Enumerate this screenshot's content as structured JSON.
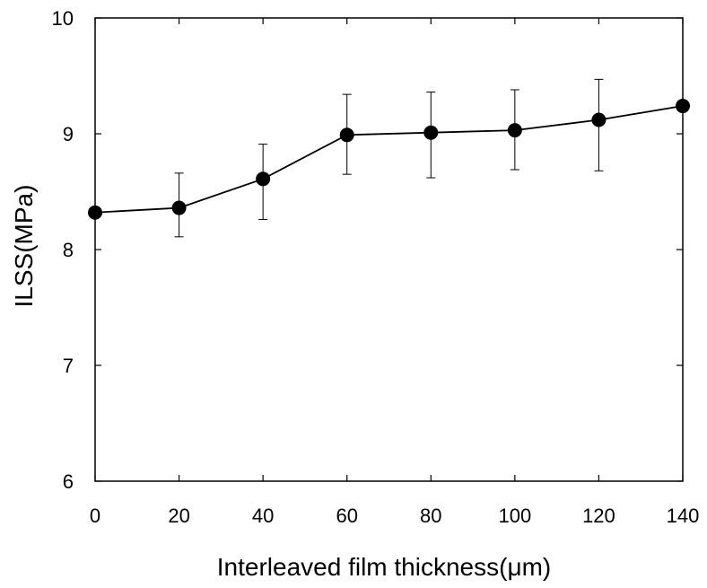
{
  "chart_data": {
    "type": "line",
    "title": "",
    "xlabel": "Interleaved  film thickness(μm)",
    "ylabel": "ILSS(MPa)",
    "xlim": [
      0,
      140
    ],
    "ylim": [
      6,
      10
    ],
    "x_ticks": [
      0,
      20,
      40,
      60,
      80,
      100,
      120,
      140
    ],
    "y_ticks": [
      6,
      7,
      8,
      9,
      10
    ],
    "grid": false,
    "legend": "none",
    "series": [
      {
        "x": [
          0,
          20,
          40,
          60,
          80,
          100,
          120,
          140
        ],
        "y": [
          8.32,
          8.36,
          8.61,
          8.99,
          9.01,
          9.03,
          9.12,
          9.24
        ],
        "err_low": [
          8.32,
          8.11,
          8.26,
          8.65,
          8.62,
          8.69,
          8.68,
          9.24
        ],
        "err_high": [
          8.32,
          8.66,
          8.91,
          9.34,
          9.36,
          9.38,
          9.47,
          9.24
        ],
        "color": "#000000"
      }
    ]
  }
}
